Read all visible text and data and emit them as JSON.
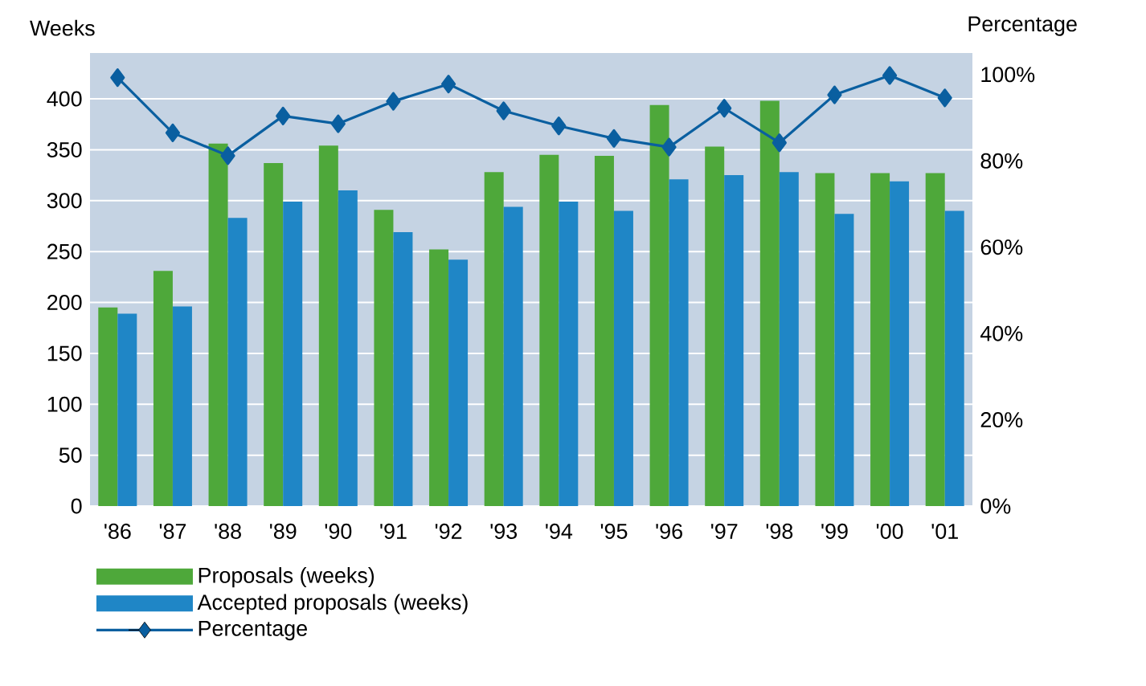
{
  "chart_data": {
    "type": "bar",
    "xlabel": null,
    "ylabel": "Weeks",
    "y2label": "Percentage",
    "categories": [
      "'86",
      "'87",
      "'88",
      "'89",
      "'90",
      "'91",
      "'92",
      "'93",
      "'94",
      "'95",
      "'96",
      "'97",
      "'98",
      "'99",
      "'00",
      "'01"
    ],
    "series": [
      {
        "name": "Proposals (weeks)",
        "color": "#4ea83a",
        "values": [
          195,
          231,
          356,
          337,
          354,
          291,
          252,
          328,
          345,
          344,
          394,
          353,
          398,
          327,
          327,
          327
        ]
      },
      {
        "name": "Accepted proposals (weeks)",
        "color": "#1f86c6",
        "values": [
          189,
          196,
          283,
          299,
          310,
          269,
          242,
          294,
          299,
          290,
          321,
          325,
          328,
          287,
          319,
          290
        ]
      },
      {
        "name": "Percentage",
        "type": "line",
        "axis": "y2",
        "color": "#0a5fa0",
        "marker": "diamond",
        "values": [
          99.3,
          86.5,
          81.2,
          90.4,
          88.6,
          93.8,
          97.8,
          91.6,
          88.1,
          85.2,
          83.2,
          92.2,
          84.2,
          95.3,
          99.8,
          94.6
        ]
      }
    ],
    "ylim": [
      0,
      445
    ],
    "yticks": [
      0,
      50,
      100,
      150,
      200,
      250,
      300,
      350,
      400
    ],
    "y2lim": [
      0,
      105
    ],
    "y2ticks": [
      {
        "value": 0,
        "label": "0%"
      },
      {
        "value": 20,
        "label": "20%"
      },
      {
        "value": 40,
        "label": "40%"
      },
      {
        "value": 60,
        "label": "60%"
      },
      {
        "value": 80,
        "label": "80%"
      },
      {
        "value": 100,
        "label": "100%"
      }
    ],
    "grid": "y",
    "legend": "bottom"
  }
}
